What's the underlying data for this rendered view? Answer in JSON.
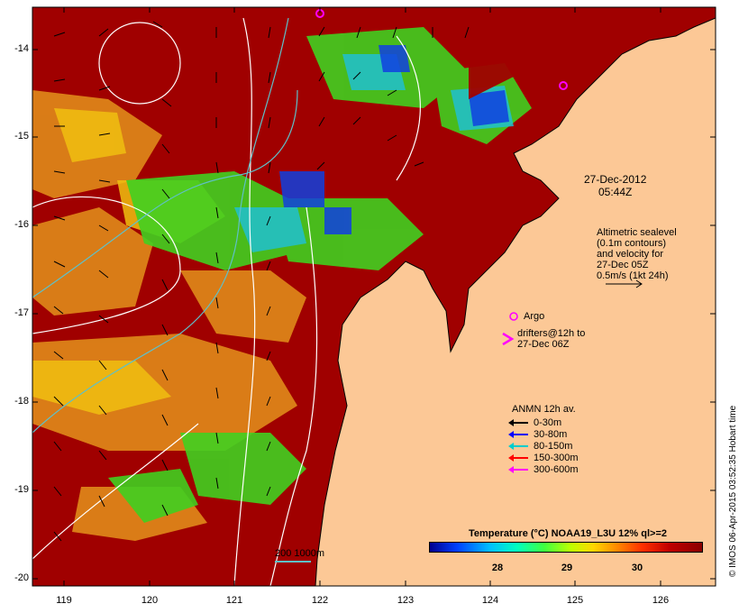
{
  "axes": {
    "y_ticks": [
      "-14",
      "-15",
      "-16",
      "-17",
      "-18",
      "-19",
      "-20"
    ],
    "x_ticks": [
      "119",
      "120",
      "121",
      "122",
      "123",
      "124",
      "125",
      "126"
    ],
    "y_range": [
      -20.1,
      -13.6
    ],
    "x_range": [
      118.6,
      126.7
    ]
  },
  "date": {
    "line1": "27-Dec-2012",
    "line2": "05:44Z"
  },
  "altimetry": {
    "lines": [
      "Altimetric sealevel",
      "(0.1m contours)",
      "and velocity for",
      "27-Dec 05Z",
      "0.5m/s (1kt 24h)"
    ]
  },
  "argo": {
    "label": "Argo",
    "color": "#ff00ff"
  },
  "drifters": {
    "symbol": ">",
    "line1": "drifters@12h to",
    "line2": "27-Dec 06Z",
    "color": "#ff00ff"
  },
  "anmn": {
    "title": "ANMN 12h av.",
    "items": [
      {
        "label": "0-30m",
        "color": "#000000"
      },
      {
        "label": "30-80m",
        "color": "#0000ff"
      },
      {
        "label": "80-150m",
        "color": "#00cccc"
      },
      {
        "label": "150-300m",
        "color": "#ff0000"
      },
      {
        "label": "300-600m",
        "color": "#ff00ff"
      }
    ]
  },
  "colorbar": {
    "title": "Temperature (°C) NOAA19_L3U 12% ql>=2",
    "ticks": [
      "28",
      "29",
      "30"
    ],
    "range": [
      27.0,
      30.9
    ]
  },
  "scale": {
    "label": "200  1000m",
    "color": "#5fc0c8"
  },
  "credit": "© IMOS 06-Apr-2015 03:52:35 Hobart time",
  "colors": {
    "land": "#fcc896",
    "warm": "#a00000",
    "mid": "#e08a1a",
    "cool": "#40d020",
    "cold": "#1040e0"
  }
}
